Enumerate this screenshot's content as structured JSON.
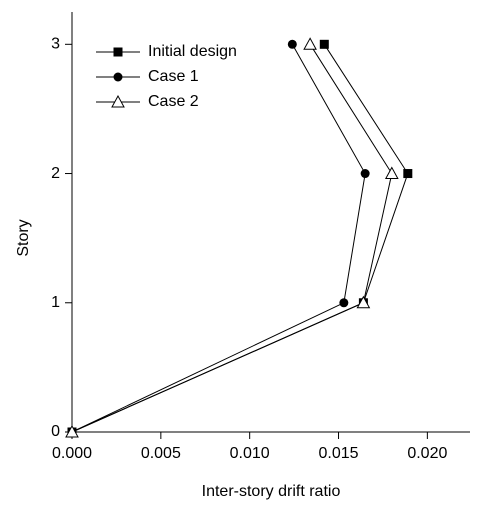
{
  "chart_data": {
    "type": "line",
    "x_label": "Inter-story drift ratio",
    "y_label": "Story",
    "y": [
      0,
      1,
      2,
      3
    ],
    "series": [
      {
        "name": "Initial design",
        "color": "#000000",
        "marker": "square",
        "values": [
          0,
          0.0164,
          0.0189,
          0.0142
        ]
      },
      {
        "name": "Case 1",
        "color": "#000000",
        "marker": "circle",
        "values": [
          0,
          0.0153,
          0.0165,
          0.0124
        ]
      },
      {
        "name": "Case 2",
        "color": "#000000",
        "marker": "triangle-open",
        "values": [
          0,
          0.0164,
          0.018,
          0.0134
        ]
      }
    ],
    "xlim": [
      0,
      0.0224
    ],
    "ylim": [
      0,
      3.25
    ],
    "xticks": [
      {
        "value": 0,
        "label": "0.000"
      },
      {
        "value": 0.005,
        "label": "0.005"
      },
      {
        "value": 0.01,
        "label": "0.010"
      },
      {
        "value": 0.015,
        "label": "0.015"
      },
      {
        "value": 0.02,
        "label": "0.020"
      }
    ],
    "yticks": [
      0,
      1,
      2,
      3
    ],
    "legend": "top-left"
  }
}
